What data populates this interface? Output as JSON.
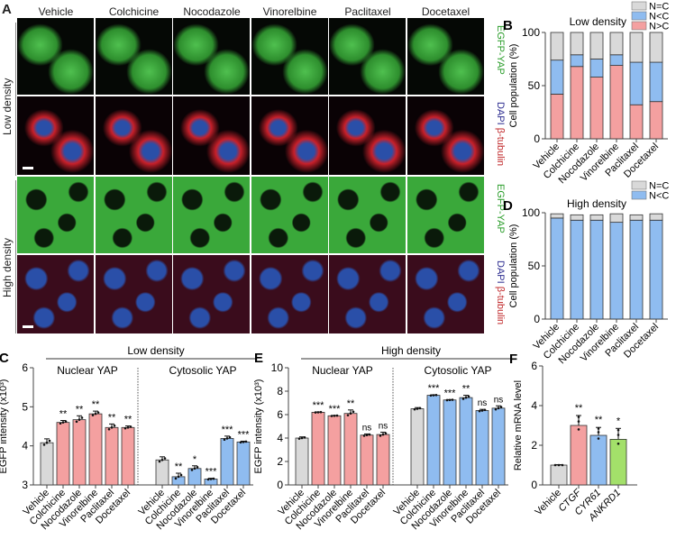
{
  "panel_a": {
    "letter": "A",
    "columns": [
      "Vehicle",
      "Colchicine",
      "Nocodazole",
      "Vinorelbine",
      "Paclitaxel",
      "Docetaxel"
    ],
    "row_groups": [
      "Low density",
      "High density"
    ],
    "channel_labels": {
      "egfp": "EGFP-YAP",
      "dapi": "DAPI",
      "tubulin": "β-tubulin"
    }
  },
  "colors": {
    "nc_equal": "#d9d9d9",
    "n_less_c": "#8fbcf0",
    "n_greater_c": "#f4a0a0",
    "green_bar": "#a3e06a",
    "egfp_label": "#2a9d2a",
    "dapi_label": "#2b2b8f",
    "tubulin_label": "#c0282a"
  },
  "chart_data": [
    {
      "id": "B",
      "type": "bar",
      "stacked": true,
      "title": "Low density",
      "ylabel": "Cell population (%)",
      "ylim": [
        0,
        100
      ],
      "yticks": [
        0,
        50,
        100
      ],
      "categories": [
        "Vehicle",
        "Colchicine",
        "Nocodazole",
        "Vinorelbine",
        "Paclitaxel",
        "Docetaxel"
      ],
      "series": [
        {
          "name": "N>C",
          "values": [
            42,
            68,
            58,
            69,
            32,
            35
          ]
        },
        {
          "name": "N<C",
          "values": [
            32,
            11,
            17,
            10,
            40,
            37
          ]
        },
        {
          "name": "N=C",
          "values": [
            26,
            21,
            25,
            21,
            28,
            28
          ]
        }
      ],
      "legend": [
        "N=C",
        "N<C",
        "N>C"
      ]
    },
    {
      "id": "D",
      "type": "bar",
      "stacked": true,
      "title": "High density",
      "ylabel": "Cell population (%)",
      "ylim": [
        0,
        100
      ],
      "yticks": [
        0,
        50,
        100
      ],
      "categories": [
        "Vehicle",
        "Colchicine",
        "Nocodazole",
        "Vinorelbine",
        "Paclitaxel",
        "Docetaxel"
      ],
      "series": [
        {
          "name": "N<C",
          "values": [
            95,
            93,
            93,
            91,
            93,
            93
          ]
        },
        {
          "name": "N=C",
          "values": [
            4,
            5,
            5,
            8,
            5,
            6
          ]
        }
      ],
      "legend": [
        "N=C",
        "N<C"
      ]
    },
    {
      "id": "C",
      "type": "bar",
      "title": "Low density",
      "ylabel": "EGFP intensity (x10³)",
      "ylim": [
        3,
        6
      ],
      "yticks": [
        3,
        4,
        5,
        6
      ],
      "groups": [
        {
          "name": "Nuclear YAP",
          "categories": [
            "Vehicle",
            "Colchicine",
            "Nocodazole",
            "Vinorelbine",
            "Paclitaxel",
            "Docetaxel"
          ],
          "values": [
            4.08,
            4.6,
            4.67,
            4.82,
            4.47,
            4.47
          ],
          "errors": [
            0.1,
            0.05,
            0.1,
            0.07,
            0.09,
            0.04
          ],
          "significance": [
            "",
            "**",
            "**",
            "**",
            "**",
            "**"
          ]
        },
        {
          "name": "Cytosolic YAP",
          "categories": [
            "Vehicle",
            "Colchicine",
            "Nocodazole",
            "Vinorelbine",
            "Paclitaxel",
            "Docetaxel"
          ],
          "values": [
            3.64,
            3.21,
            3.42,
            3.15,
            4.19,
            4.1
          ],
          "errors": [
            0.08,
            0.09,
            0.07,
            0.02,
            0.06,
            0.02
          ],
          "significance": [
            "",
            "**",
            "*",
            "***",
            "***",
            "***"
          ]
        }
      ]
    },
    {
      "id": "E",
      "type": "bar",
      "title": "High density",
      "ylabel": "EGFP intensity (x10³)",
      "ylim": [
        0,
        10
      ],
      "yticks": [
        0,
        2,
        4,
        6,
        8,
        10
      ],
      "groups": [
        {
          "name": "Nuclear YAP",
          "categories": [
            "Vehicle",
            "Colchicine",
            "Nocodazole",
            "Vinorelbine",
            "Paclitaxel",
            "Docetaxel"
          ],
          "values": [
            4.0,
            6.2,
            5.9,
            6.1,
            4.25,
            4.3
          ],
          "errors": [
            0.1,
            0.03,
            0.03,
            0.3,
            0.1,
            0.2
          ],
          "significance": [
            "",
            "***",
            "***",
            "**",
            "ns",
            "ns"
          ]
        },
        {
          "name": "Cytosolic YAP",
          "categories": [
            "Vehicle",
            "Colchicine",
            "Nocodazole",
            "Vinorelbine",
            "Paclitaxel",
            "Docetaxel"
          ],
          "values": [
            6.5,
            7.65,
            7.25,
            7.45,
            6.35,
            6.55
          ],
          "errors": [
            0.1,
            0.04,
            0.03,
            0.2,
            0.1,
            0.2
          ],
          "significance": [
            "",
            "***",
            "***",
            "**",
            "ns",
            "ns"
          ]
        }
      ]
    },
    {
      "id": "F",
      "type": "bar",
      "ylabel": "Relative mRNA level",
      "ylim": [
        0,
        6
      ],
      "yticks": [
        0,
        2,
        4,
        6
      ],
      "categories": [
        "Vehicle",
        "CTGF",
        "CYR61",
        "ANKRD1"
      ],
      "values": [
        1.0,
        3.0,
        2.5,
        2.3
      ],
      "errors": [
        0.02,
        0.5,
        0.4,
        0.55
      ],
      "significance": [
        "",
        "**",
        "**",
        "*"
      ]
    }
  ]
}
